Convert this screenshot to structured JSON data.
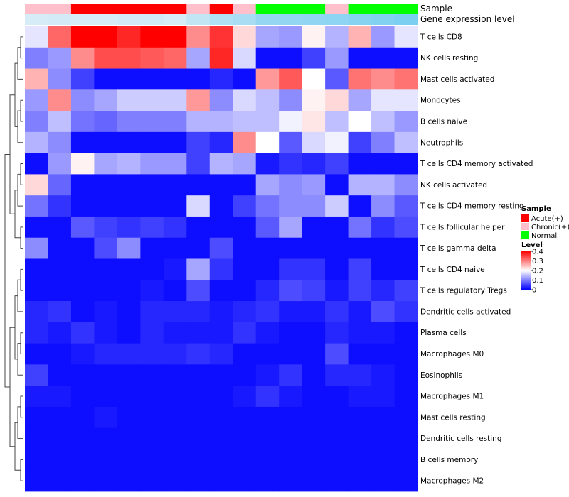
{
  "chart_data": {
    "type": "heatmap",
    "annotation_rows": [
      "Sample",
      "Gene expression level"
    ],
    "rows": [
      "T cells CD8",
      "NK cells resting",
      "Mast cells activated",
      "Monocytes",
      "B cells naive",
      "Neutrophils",
      "T cells CD4 memory activated",
      "NK cells activated",
      "T cells CD4 memory resting",
      "T cells follicular helper",
      "T cells gamma delta",
      "T cells CD4 naive",
      "T cells regulatory  Tregs",
      "Dendritic cells activated",
      "Plasma cells",
      "Macrophages M0",
      "Eosinophils",
      "Macrophages M1",
      "Mast cells resting",
      "Dendritic cells resting",
      "B cells memory",
      "Macrophages M2"
    ],
    "sample_groups": [
      "Chronic(+)",
      "Chronic(+)",
      "Acute(+)",
      "Acute(+)",
      "Acute(+)",
      "Acute(+)",
      "Acute(+)",
      "Chronic(+)",
      "Acute(+)",
      "Chronic(+)",
      "Normal",
      "Normal",
      "Normal",
      "Chronic(+)",
      "Normal",
      "Normal",
      "Normal"
    ],
    "gene_expression_level": [
      0.2,
      0.22,
      0.2,
      0.2,
      0.22,
      0.25,
      0.2,
      0.35,
      0.5,
      0.55,
      0.7,
      0.72,
      0.74,
      0.76,
      0.82,
      0.85,
      0.9
    ],
    "values": [
      [
        0.18,
        0.32,
        0.4,
        0.4,
        0.37,
        0.4,
        0.4,
        0.29,
        0.36,
        0.23,
        0.13,
        0.12,
        0.21,
        0.14,
        0.26,
        0.12,
        0.18
      ],
      [
        0.1,
        0.12,
        0.29,
        0.34,
        0.34,
        0.33,
        0.32,
        0.13,
        0.37,
        0.17,
        0.01,
        0.01,
        0.05,
        0.12,
        0.01,
        0.01,
        0.01
      ],
      [
        0.26,
        0.11,
        0.05,
        0.01,
        0.01,
        0.01,
        0.01,
        0.01,
        0.03,
        0.01,
        0.28,
        0.33,
        0.2,
        0.07,
        0.31,
        0.29,
        0.31
      ],
      [
        0.12,
        0.29,
        0.11,
        0.13,
        0.16,
        0.16,
        0.16,
        0.28,
        0.11,
        0.17,
        0.15,
        0.11,
        0.21,
        0.23,
        0.13,
        0.18,
        0.18
      ],
      [
        0.1,
        0.15,
        0.09,
        0.08,
        0.1,
        0.1,
        0.1,
        0.14,
        0.14,
        0.15,
        0.15,
        0.19,
        0.22,
        0.15,
        0.2,
        0.15,
        0.12
      ],
      [
        0.14,
        0.11,
        0.01,
        0.01,
        0.01,
        0.01,
        0.01,
        0.05,
        0.03,
        0.29,
        0.2,
        0.07,
        0.17,
        0.19,
        0.05,
        0.1,
        0.15
      ],
      [
        0.01,
        0.12,
        0.21,
        0.13,
        0.14,
        0.12,
        0.12,
        0.05,
        0.14,
        0.13,
        0.02,
        0.04,
        0.03,
        0.05,
        0.01,
        0.01,
        0.01
      ],
      [
        0.23,
        0.08,
        0.01,
        0.01,
        0.01,
        0.01,
        0.01,
        0.01,
        0.01,
        0.01,
        0.13,
        0.11,
        0.12,
        0.01,
        0.14,
        0.14,
        0.11
      ],
      [
        0.09,
        0.04,
        0.01,
        0.01,
        0.01,
        0.01,
        0.01,
        0.17,
        0.01,
        0.05,
        0.09,
        0.11,
        0.11,
        0.16,
        0.01,
        0.11,
        0.07
      ],
      [
        0.01,
        0.01,
        0.07,
        0.05,
        0.04,
        0.05,
        0.04,
        0.01,
        0.01,
        0.01,
        0.07,
        0.13,
        0.01,
        0.01,
        0.09,
        0.04,
        0.06
      ],
      [
        0.11,
        0.01,
        0.01,
        0.06,
        0.11,
        0.01,
        0.01,
        0.01,
        0.06,
        0.01,
        0.01,
        0.01,
        0.01,
        0.01,
        0.01,
        0.01,
        0.01
      ],
      [
        0.01,
        0.01,
        0.01,
        0.01,
        0.01,
        0.01,
        0.02,
        0.13,
        0.04,
        0.01,
        0.01,
        0.04,
        0.04,
        0.01,
        0.05,
        0.01,
        0.01
      ],
      [
        0.01,
        0.01,
        0.01,
        0.01,
        0.01,
        0.02,
        0.01,
        0.06,
        0.01,
        0.01,
        0.03,
        0.06,
        0.05,
        0.02,
        0.05,
        0.03,
        0.05
      ],
      [
        0.03,
        0.04,
        0.01,
        0.02,
        0.01,
        0.03,
        0.03,
        0.03,
        0.02,
        0.03,
        0.04,
        0.02,
        0.02,
        0.04,
        0.02,
        0.06,
        0.04
      ],
      [
        0.03,
        0.02,
        0.04,
        0.02,
        0.01,
        0.03,
        0.02,
        0.02,
        0.02,
        0.04,
        0.02,
        0.01,
        0.01,
        0.03,
        0.02,
        0.02,
        0.01
      ],
      [
        0.01,
        0.01,
        0.02,
        0.03,
        0.03,
        0.03,
        0.03,
        0.04,
        0.03,
        0.01,
        0.01,
        0.01,
        0.01,
        0.06,
        0.01,
        0.01,
        0.01
      ],
      [
        0.05,
        0.01,
        0.01,
        0.01,
        0.01,
        0.01,
        0.01,
        0.01,
        0.01,
        0.01,
        0.02,
        0.04,
        0.01,
        0.03,
        0.03,
        0.02,
        0.01
      ],
      [
        0.02,
        0.02,
        0.01,
        0.01,
        0.01,
        0.01,
        0.01,
        0.01,
        0.01,
        0.02,
        0.04,
        0.02,
        0.01,
        0.01,
        0.02,
        0.02,
        0.01
      ],
      [
        0.01,
        0.01,
        0.01,
        0.02,
        0.01,
        0.01,
        0.01,
        0.01,
        0.01,
        0.01,
        0.01,
        0.01,
        0.01,
        0.01,
        0.01,
        0.01,
        0.01
      ],
      [
        0.01,
        0.01,
        0.01,
        0.01,
        0.01,
        0.01,
        0.01,
        0.01,
        0.01,
        0.01,
        0.01,
        0.01,
        0.01,
        0.01,
        0.01,
        0.01,
        0.01
      ],
      [
        0.01,
        0.01,
        0.01,
        0.01,
        0.01,
        0.01,
        0.01,
        0.01,
        0.01,
        0.01,
        0.01,
        0.01,
        0.01,
        0.01,
        0.01,
        0.01,
        0.01
      ],
      [
        0.01,
        0.01,
        0.01,
        0.01,
        0.01,
        0.01,
        0.01,
        0.01,
        0.01,
        0.01,
        0.01,
        0.01,
        0.01,
        0.01,
        0.01,
        0.01,
        0.01
      ]
    ],
    "color_scale": {
      "low": "#0000ff",
      "mid": "#ffffff",
      "high": "#ff0000",
      "min": 0,
      "mid_value": 0.2,
      "max": 0.4
    },
    "legend": {
      "sample_title": "Sample",
      "sample_entries": [
        {
          "label": "Acute(+)",
          "color": "#ff0000"
        },
        {
          "label": "Chronic(+)",
          "color": "#ffc0cb"
        },
        {
          "label": "Normal",
          "color": "#00ff00"
        }
      ],
      "level_title": "Level",
      "level_ticks": [
        0.4,
        0.3,
        0.2,
        0.1,
        0
      ],
      "level_tick_labels": [
        "0.4",
        "0.3",
        "0.2",
        "0.1",
        "0"
      ]
    },
    "gene_level_colors": {
      "low": "#f0f4f8",
      "high": "#6ecbf0"
    },
    "dendrogram": "rows",
    "legend_placement": "right"
  }
}
